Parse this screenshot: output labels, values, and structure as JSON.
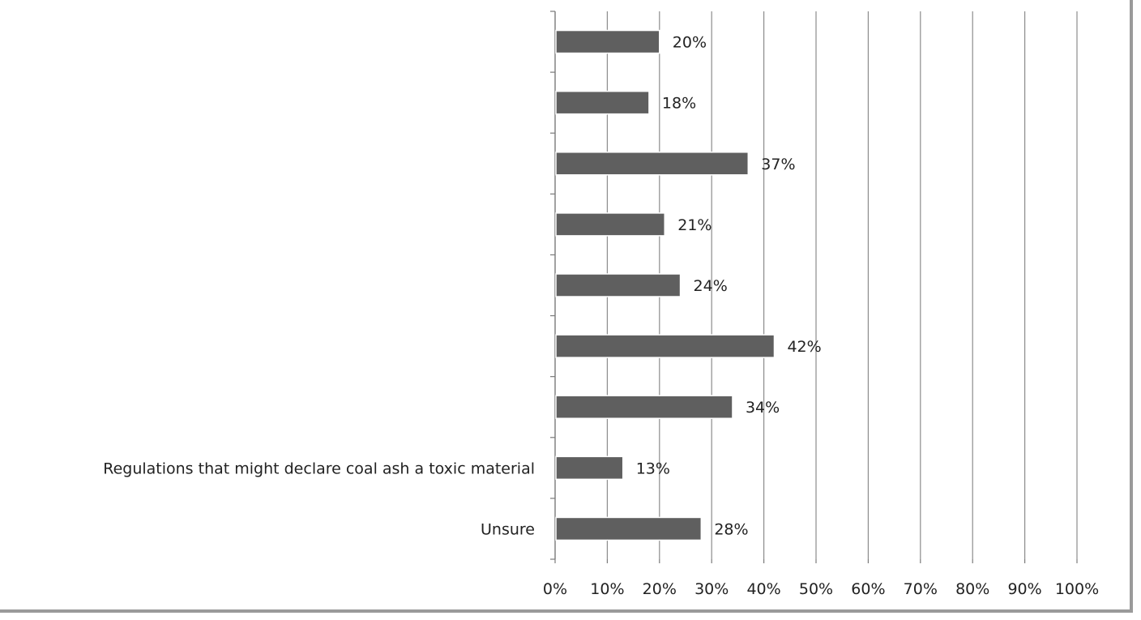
{
  "chart_data": {
    "type": "bar",
    "orientation": "horizontal",
    "categories": [
      "",
      "",
      "",
      "",
      "",
      "",
      "",
      "Regulations that might declare coal ash a toxic material",
      "Unsure"
    ],
    "values": [
      20,
      18,
      37,
      21,
      24,
      42,
      34,
      13,
      28
    ],
    "data_labels": [
      "20%",
      "18%",
      "37%",
      "21%",
      "24%",
      "42%",
      "34%",
      "13%",
      "28%"
    ],
    "xlim": [
      0,
      100
    ],
    "x_ticks": [
      "0%",
      "10%",
      "20%",
      "30%",
      "40%",
      "50%",
      "60%",
      "70%",
      "80%",
      "90%",
      "100%"
    ],
    "grid": "vertical",
    "bar_color": "#5f5f5f",
    "grid_color": "#8c8c8c"
  }
}
